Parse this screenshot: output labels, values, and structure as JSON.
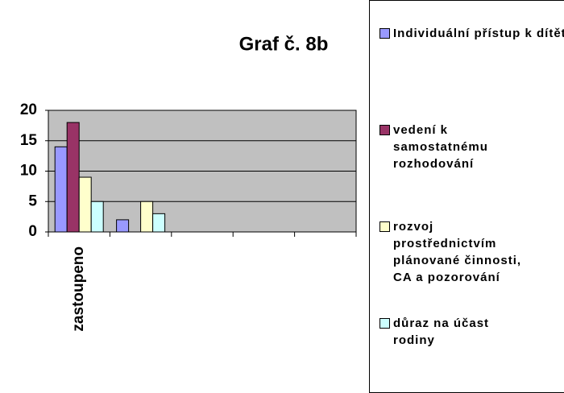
{
  "chart_data": {
    "type": "bar",
    "title": "Graf č. 8b",
    "categories": [
      "zastoupeno",
      null,
      null,
      null,
      null
    ],
    "series": [
      {
        "name": "Individuální přístup k dítěti",
        "color": "#9999ff",
        "values": [
          14,
          2,
          null,
          null,
          null
        ]
      },
      {
        "name": "vedení k samostatnému rozhodování",
        "color": "#993366",
        "values": [
          18,
          null,
          null,
          null,
          null
        ]
      },
      {
        "name": "rozvoj prostřednictvím plánované činnosti, CA a pozorování",
        "color": "#ffffcc",
        "values": [
          9,
          5,
          null,
          null,
          null
        ]
      },
      {
        "name": "důraz na účast rodiny",
        "color": "#ccffff",
        "values": [
          5,
          3,
          null,
          null,
          null
        ]
      }
    ],
    "ylim": [
      0,
      20
    ],
    "yticks": [
      0,
      5,
      10,
      15,
      20
    ],
    "grid": true,
    "legend": "right"
  }
}
